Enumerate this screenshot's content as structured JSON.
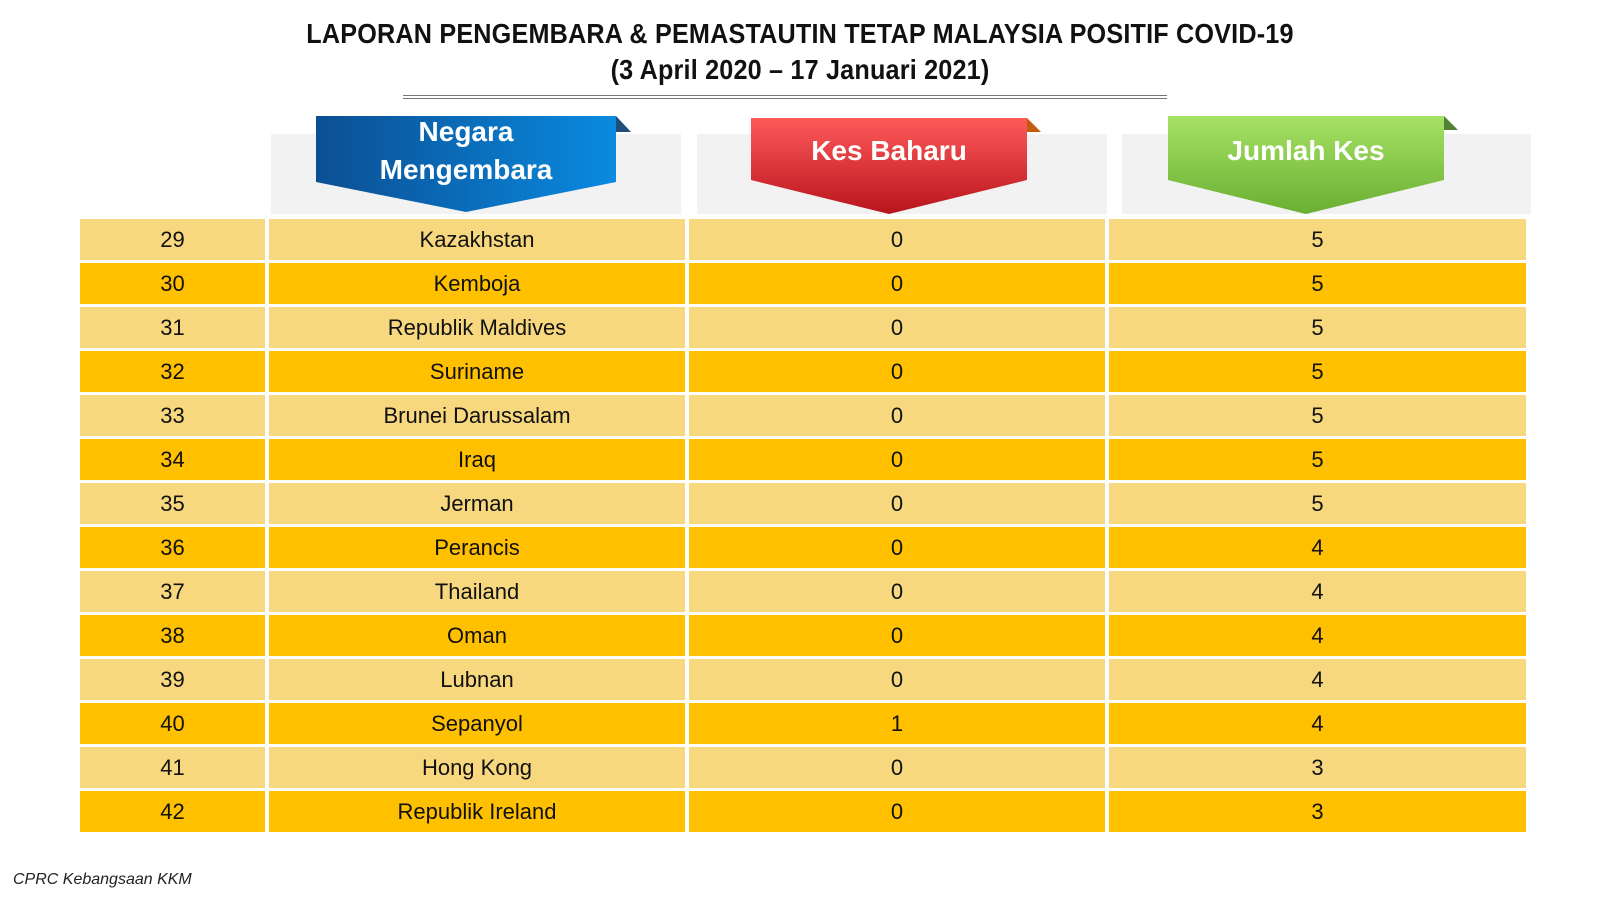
{
  "title": {
    "line1": "LAPORAN PENGEMBARA & PEMASTAUTIN TETAP MALAYSIA POSITIF COVID-19",
    "line2": "(3 April 2020 –  17 Januari 2021)"
  },
  "headers": {
    "country_line1": "Negara",
    "country_line2": "Mengembara",
    "new_cases": "Kes Baharu",
    "total_cases": "Jumlah Kes"
  },
  "colors": {
    "header_blue": "#0a6bbf",
    "header_red": "#e8303a",
    "header_green": "#8fd14f",
    "row_light": "#f7d87f",
    "row_dark": "#ffc000"
  },
  "rows": [
    {
      "no": "29",
      "country": "Kazakhstan",
      "new": "0",
      "total": "5"
    },
    {
      "no": "30",
      "country": "Kemboja",
      "new": "0",
      "total": "5"
    },
    {
      "no": "31",
      "country": "Republik Maldives",
      "new": "0",
      "total": "5"
    },
    {
      "no": "32",
      "country": "Suriname",
      "new": "0",
      "total": "5"
    },
    {
      "no": "33",
      "country": "Brunei Darussalam",
      "new": "0",
      "total": "5"
    },
    {
      "no": "34",
      "country": "Iraq",
      "new": "0",
      "total": "5"
    },
    {
      "no": "35",
      "country": "Jerman",
      "new": "0",
      "total": "5"
    },
    {
      "no": "36",
      "country": "Perancis",
      "new": "0",
      "total": "4"
    },
    {
      "no": "37",
      "country": "Thailand",
      "new": "0",
      "total": "4"
    },
    {
      "no": "38",
      "country": "Oman",
      "new": "0",
      "total": "4"
    },
    {
      "no": "39",
      "country": "Lubnan",
      "new": "0",
      "total": "4"
    },
    {
      "no": "40",
      "country": "Sepanyol",
      "new": "1",
      "total": "4"
    },
    {
      "no": "41",
      "country": "Hong Kong",
      "new": "0",
      "total": "3"
    },
    {
      "no": "42",
      "country": "Republik Ireland",
      "new": "0",
      "total": "3"
    }
  ],
  "footer": "CPRC Kebangsaan KKM"
}
